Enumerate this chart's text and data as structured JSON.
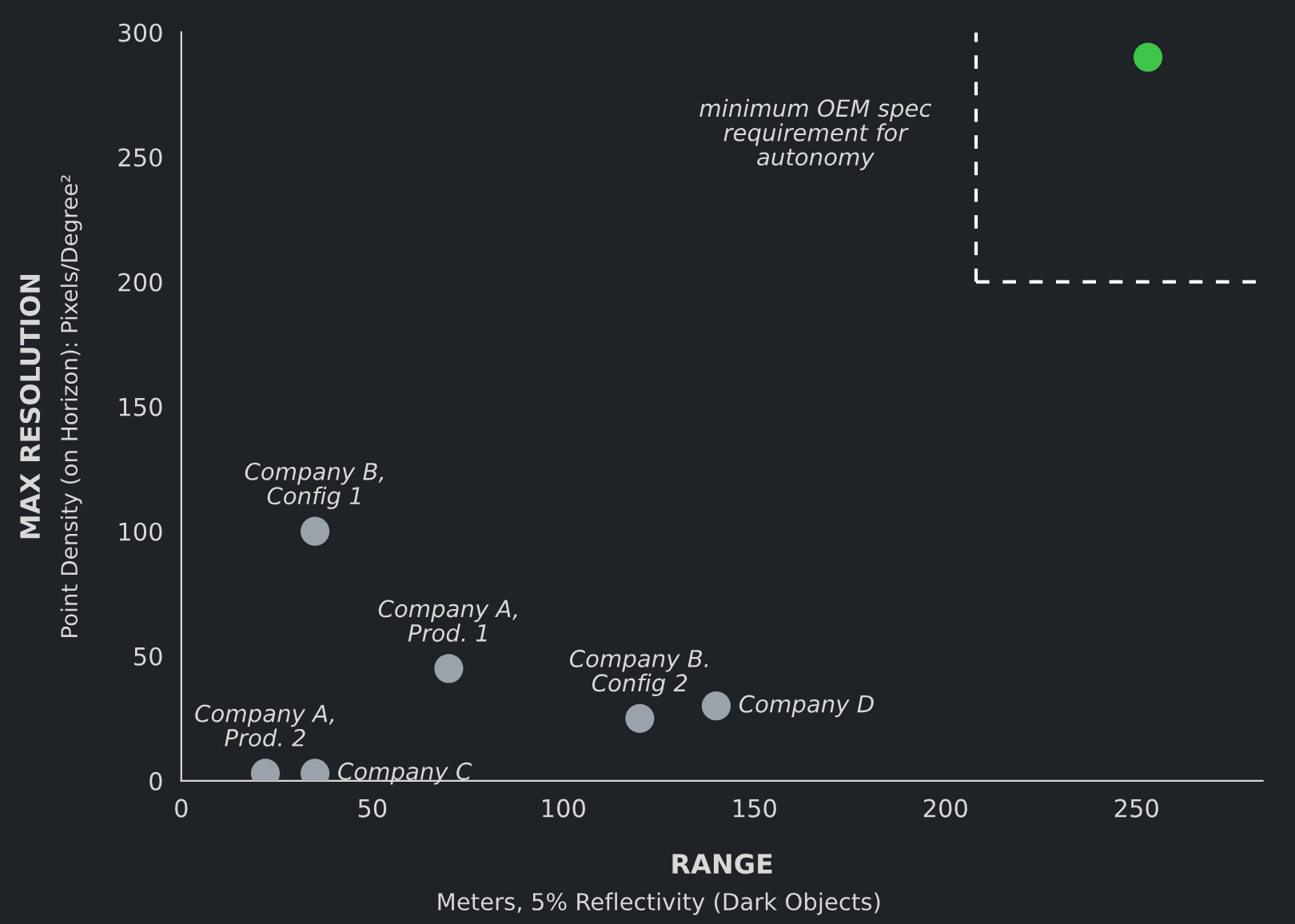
{
  "chart_data": {
    "type": "scatter",
    "xlabel": "RANGE\nMeters, 5% Reflectivity (Dark Objects)",
    "ylabel": "MAX RESOLUTION\nPoint Density (on Horizon): Pixels/Degree²",
    "series": [
      {
        "color": "#9aa3ab",
        "x": [
          35,
          70,
          120,
          140,
          22,
          35
        ],
        "values": [
          100,
          45,
          25,
          30,
          3,
          3
        ]
      },
      {
        "color": "#3fc64a",
        "x": [
          253
        ],
        "values": [
          290
        ]
      }
    ],
    "annotations": [
      {
        "text": "Company B,\nConfig 1",
        "x": 35,
        "y": 100
      },
      {
        "text": "Company A,\nProd. 1",
        "x": 70,
        "y": 45
      },
      {
        "text": "Company B.\nConfig 2",
        "x": 120,
        "y": 25
      },
      {
        "text": "Company D",
        "x": 140,
        "y": 30
      },
      {
        "text": "Company A,\nProd. 2",
        "x": 22,
        "y": 3
      },
      {
        "text": "Company C",
        "x": 35,
        "y": 3
      }
    ],
    "ref_lines": [
      {
        "axis": "x",
        "value": 208,
        "line_style": "dashed",
        "color": "#ffffff",
        "label": "minimum OEM spec\nrequirement for\nautonomy"
      },
      {
        "axis": "y",
        "value": 200,
        "line_style": "dashed",
        "color": "#ffffff"
      }
    ],
    "xlim": [
      0,
      283
    ],
    "ylim": [
      0,
      300
    ],
    "xticks": [
      0,
      50,
      100,
      150,
      200,
      250
    ],
    "yticks": [
      0,
      50,
      100,
      150,
      200,
      250,
      300
    ],
    "marker": "circle",
    "grid": false,
    "legend": false
  }
}
